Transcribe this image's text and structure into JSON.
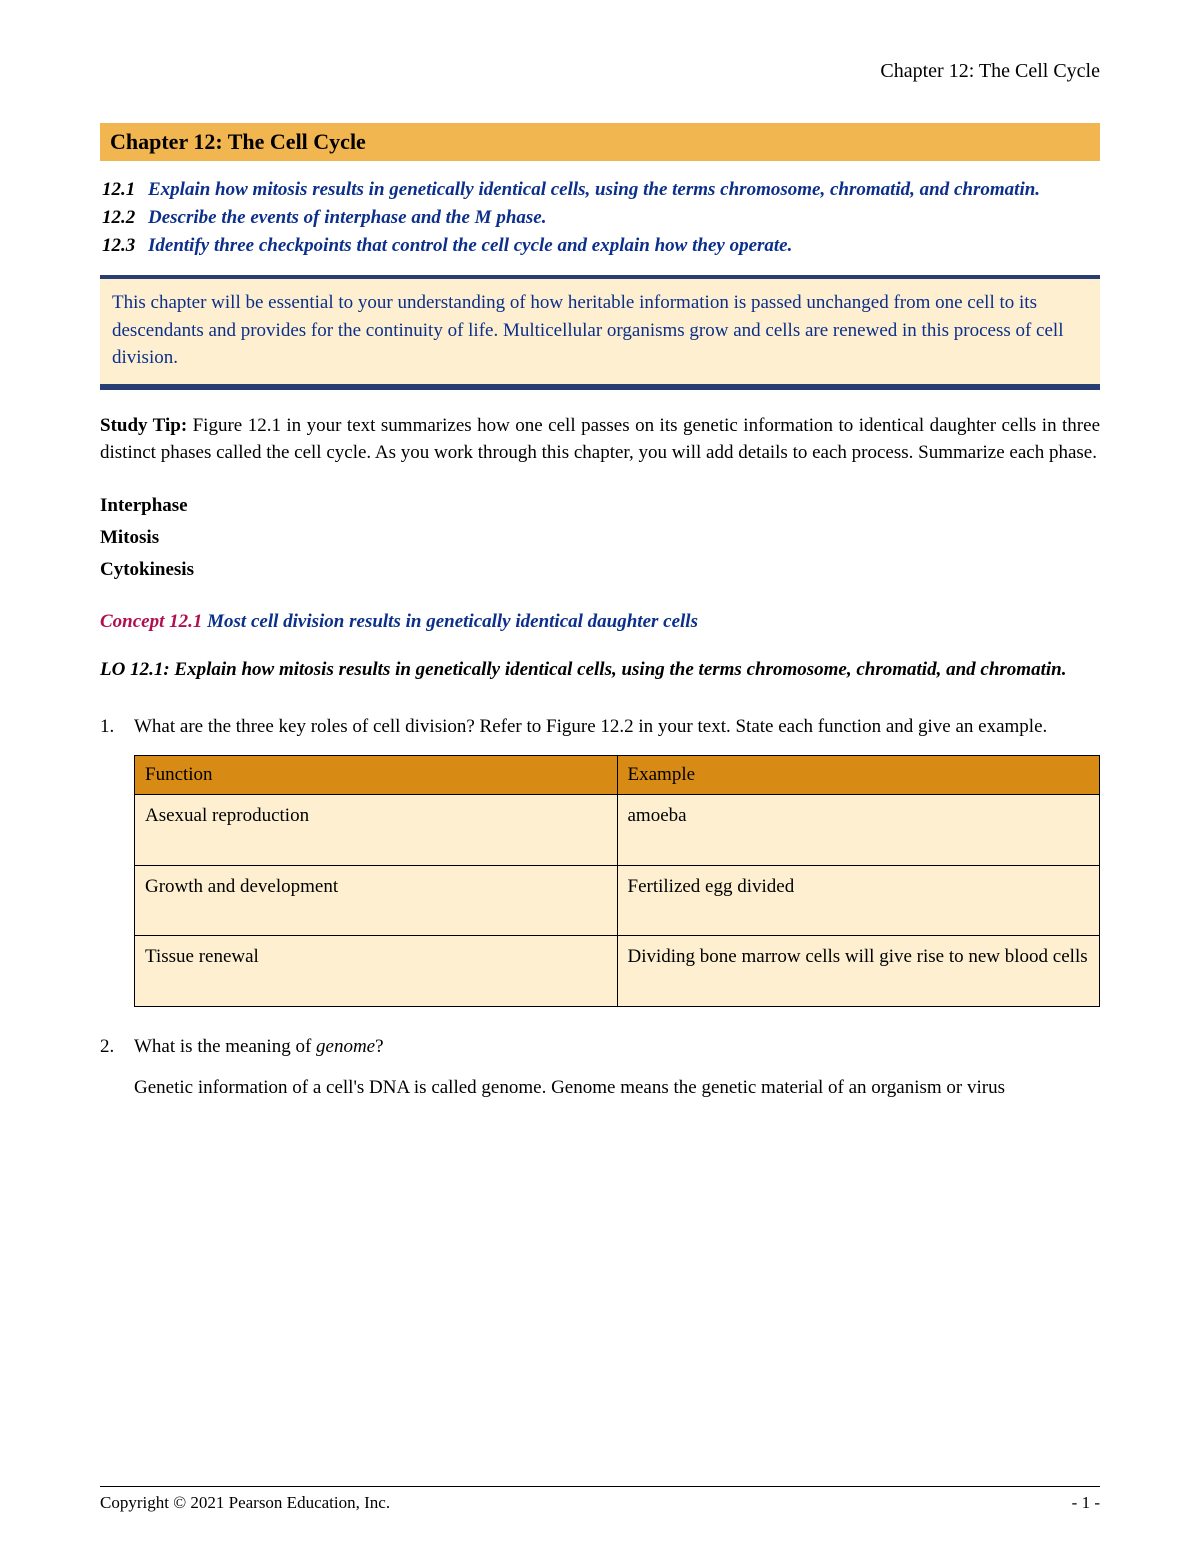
{
  "running_header": "Chapter 12: The Cell Cycle",
  "chapter_title": "Chapter 12: The Cell Cycle",
  "objectives": [
    {
      "num": "12.1",
      "text": "Explain how mitosis results in genetically identical cells, using the terms chromosome, chromatid, and chromatin."
    },
    {
      "num": "12.2",
      "text": "Describe the events of interphase and the M phase."
    },
    {
      "num": "12.3",
      "text": "Identify three checkpoints that control the cell cycle and explain how they operate."
    }
  ],
  "intro_box": "This chapter will be essential to your understanding of how heritable information is passed unchanged from one cell to its descendants and provides for the continuity of life. Multicellular organisms grow and cells are renewed in this process of cell division.",
  "study_tip": {
    "label": "Study Tip:",
    "text": " Figure 12.1 in your text summarizes how one cell passes on its genetic information to identical daughter cells in three distinct phases called the cell cycle. As you work through this chapter, you will add details to each process. Summarize each phase."
  },
  "phases": [
    "Interphase",
    "Mitosis",
    "Cytokinesis"
  ],
  "concept": {
    "label": "Concept 12.1 ",
    "text": "Most cell division results in genetically identical daughter cells"
  },
  "lo": "LO 12.1: Explain how mitosis results in genetically identical cells, using the terms chromosome, chromatid, and chromatin.",
  "q1": {
    "num": "1.",
    "text": "What are the three key roles of cell division? Refer to Figure 12.2 in your text. State each function and give an example.",
    "table": {
      "headers": [
        "Function",
        "Example"
      ],
      "rows": [
        [
          "Asexual reproduction",
          "amoeba"
        ],
        [
          "Growth and development",
          "Fertilized egg divided"
        ],
        [
          "Tissue renewal",
          "Dividing bone marrow cells will give rise to new blood cells"
        ]
      ],
      "header_bg": "#d88b14",
      "cell_bg": "#fdefd0",
      "border_color": "#000000"
    }
  },
  "q2": {
    "num": "2.",
    "text_pre": "What is the meaning of ",
    "text_italic": "genome",
    "text_post": "?",
    "answer": "Genetic information of a cell's DNA is called genome. Genome means the genetic material of an organism or virus"
  },
  "footer": {
    "copyright": "Copyright © 2021 Pearson Education, Inc.",
    "page": "- 1 -"
  },
  "colors": {
    "title_bar_bg": "#f1b64f",
    "objective_text": "#0b2f8a",
    "intro_bg": "#fdefd0",
    "intro_border": "#283e72",
    "concept_label": "#b01050"
  }
}
